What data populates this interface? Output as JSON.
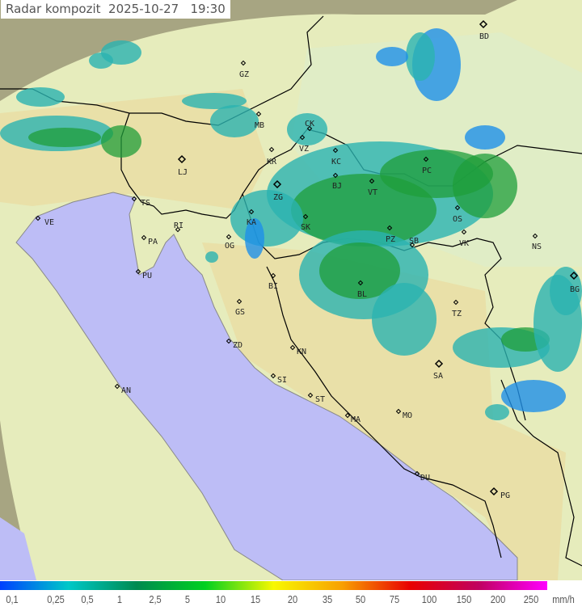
{
  "title": "Radar kompozit  2025-10-27   19:30",
  "colors": {
    "sea": "#bdbdf6",
    "land": "#e6ecbc",
    "coverage_outside": "#a7a582",
    "border": "#000000",
    "radar_light": "#1e90e8",
    "radar_mid": "#2ab3b0",
    "radar_heavy": "#1f9e3a"
  },
  "legend": {
    "unit": "mm/h",
    "labels": [
      "0,1",
      "0,25",
      "0,5",
      "1",
      "2,5",
      "5",
      "10",
      "15",
      "20",
      "35",
      "50",
      "75",
      "100",
      "150",
      "200",
      "250"
    ],
    "gradient": [
      "#0040ff",
      "#00c8c8",
      "#008a50",
      "#00d020",
      "#f8f800",
      "#f8a000",
      "#e80000",
      "#c00060",
      "#ff00ff"
    ]
  },
  "cities": [
    {
      "code": "GZ"
    },
    {
      "code": "MB"
    },
    {
      "code": "LJ"
    },
    {
      "code": "TS"
    },
    {
      "code": "VE"
    },
    {
      "code": "RI"
    },
    {
      "code": "PA"
    },
    {
      "code": "PU"
    },
    {
      "code": "OG"
    },
    {
      "code": "KA"
    },
    {
      "code": "KR"
    },
    {
      "code": "ZG"
    },
    {
      "code": "VZ"
    },
    {
      "code": "CK"
    },
    {
      "code": "KC"
    },
    {
      "code": "BJ"
    },
    {
      "code": "VT"
    },
    {
      "code": "PC"
    },
    {
      "code": "SK"
    },
    {
      "code": "OS"
    },
    {
      "code": "PZ"
    },
    {
      "code": "SB"
    },
    {
      "code": "VK"
    },
    {
      "code": "NS"
    },
    {
      "code": "BG"
    },
    {
      "code": "BL"
    },
    {
      "code": "TZ"
    },
    {
      "code": "SA"
    },
    {
      "code": "BI"
    },
    {
      "code": "GS"
    },
    {
      "code": "ZD"
    },
    {
      "code": "KN"
    },
    {
      "code": "SI"
    },
    {
      "code": "ST"
    },
    {
      "code": "MA"
    },
    {
      "code": "MO"
    },
    {
      "code": "DU"
    },
    {
      "code": "PG"
    },
    {
      "code": "AN"
    },
    {
      "code": "BD"
    }
  ]
}
